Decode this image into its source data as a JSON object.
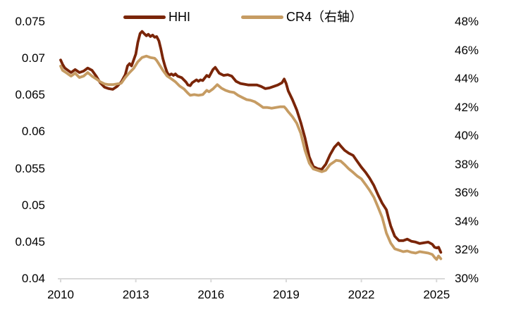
{
  "colors": {
    "hhi": "#7A2508",
    "cr4": "#C69C63",
    "axis_line": "#D9D9D9",
    "text": "#000000",
    "background": "#FFFFFF"
  },
  "legend": {
    "hhi_label": "HHI",
    "cr4_label": "CR4（右轴）"
  },
  "chart_data": {
    "type": "line",
    "title": "",
    "xlabel": "",
    "ylabel_left": "",
    "ylabel_right": "",
    "grid": false,
    "legend_position": "top",
    "x_axis": {
      "ticks": [
        2010,
        2013,
        2016,
        2019,
        2022,
        2025
      ],
      "tick_labels": [
        "2010",
        "2013",
        "2016",
        "2019",
        "2022",
        "2025"
      ],
      "range": [
        2009.9,
        2025.4
      ]
    },
    "y_axis_left": {
      "range": [
        0.04,
        0.075
      ],
      "ticks": [
        0.04,
        0.045,
        0.05,
        0.055,
        0.06,
        0.065,
        0.07,
        0.075
      ],
      "tick_labels": [
        "0.04",
        "0.045",
        "0.05",
        "0.055",
        "0.06",
        "0.065",
        "0.07",
        "0.075"
      ]
    },
    "y_axis_right": {
      "range": [
        30,
        48
      ],
      "ticks": [
        30,
        32,
        34,
        36,
        38,
        40,
        42,
        44,
        46,
        48
      ],
      "tick_labels": [
        "30%",
        "32%",
        "34%",
        "36%",
        "38%",
        "40%",
        "42%",
        "44%",
        "46%",
        "48%"
      ]
    },
    "series": [
      {
        "name": "HHI",
        "axis": "left",
        "color": "#7A2508",
        "points": [
          [
            2010.0,
            0.0698
          ],
          [
            2010.08,
            0.0692
          ],
          [
            2010.17,
            0.0687
          ],
          [
            2010.33,
            0.0683
          ],
          [
            2010.42,
            0.0681
          ],
          [
            2010.58,
            0.0685
          ],
          [
            2010.75,
            0.0681
          ],
          [
            2010.92,
            0.0683
          ],
          [
            2011.08,
            0.0687
          ],
          [
            2011.25,
            0.0684
          ],
          [
            2011.42,
            0.0676
          ],
          [
            2011.58,
            0.0667
          ],
          [
            2011.75,
            0.0661
          ],
          [
            2011.92,
            0.0659
          ],
          [
            2012.08,
            0.0658
          ],
          [
            2012.25,
            0.0662
          ],
          [
            2012.42,
            0.0668
          ],
          [
            2012.58,
            0.0678
          ],
          [
            2012.67,
            0.069
          ],
          [
            2012.75,
            0.0693
          ],
          [
            2012.83,
            0.069
          ],
          [
            2013.0,
            0.0706
          ],
          [
            2013.08,
            0.0722
          ],
          [
            2013.17,
            0.0734
          ],
          [
            2013.25,
            0.0737
          ],
          [
            2013.33,
            0.0734
          ],
          [
            2013.42,
            0.0731
          ],
          [
            2013.5,
            0.0733
          ],
          [
            2013.58,
            0.073
          ],
          [
            2013.67,
            0.0732
          ],
          [
            2013.75,
            0.0729
          ],
          [
            2013.83,
            0.073
          ],
          [
            2013.92,
            0.0724
          ],
          [
            2014.0,
            0.0713
          ],
          [
            2014.08,
            0.07
          ],
          [
            2014.17,
            0.0689
          ],
          [
            2014.25,
            0.0681
          ],
          [
            2014.33,
            0.0677
          ],
          [
            2014.42,
            0.0679
          ],
          [
            2014.5,
            0.0677
          ],
          [
            2014.58,
            0.0679
          ],
          [
            2014.67,
            0.0676
          ],
          [
            2014.83,
            0.0674
          ],
          [
            2015.0,
            0.0668
          ],
          [
            2015.08,
            0.0664
          ],
          [
            2015.17,
            0.0663
          ],
          [
            2015.25,
            0.0667
          ],
          [
            2015.42,
            0.0671
          ],
          [
            2015.5,
            0.0669
          ],
          [
            2015.58,
            0.0671
          ],
          [
            2015.67,
            0.067
          ],
          [
            2015.83,
            0.0677
          ],
          [
            2015.92,
            0.0675
          ],
          [
            2016.08,
            0.0685
          ],
          [
            2016.17,
            0.0688
          ],
          [
            2016.33,
            0.068
          ],
          [
            2016.5,
            0.0677
          ],
          [
            2016.67,
            0.0678
          ],
          [
            2016.83,
            0.0676
          ],
          [
            2017.0,
            0.0669
          ],
          [
            2017.17,
            0.0666
          ],
          [
            2017.33,
            0.0665
          ],
          [
            2017.5,
            0.0664
          ],
          [
            2017.67,
            0.0664
          ],
          [
            2017.83,
            0.0664
          ],
          [
            2018.0,
            0.0662
          ],
          [
            2018.17,
            0.0659
          ],
          [
            2018.33,
            0.066
          ],
          [
            2018.5,
            0.0662
          ],
          [
            2018.67,
            0.0664
          ],
          [
            2018.83,
            0.0667
          ],
          [
            2018.92,
            0.0672
          ],
          [
            2019.0,
            0.0666
          ],
          [
            2019.08,
            0.0656
          ],
          [
            2019.25,
            0.0644
          ],
          [
            2019.42,
            0.063
          ],
          [
            2019.58,
            0.0613
          ],
          [
            2019.75,
            0.0592
          ],
          [
            2019.92,
            0.0566
          ],
          [
            2020.08,
            0.0553
          ],
          [
            2020.25,
            0.055
          ],
          [
            2020.42,
            0.0549
          ],
          [
            2020.58,
            0.0556
          ],
          [
            2020.75,
            0.0569
          ],
          [
            2020.92,
            0.0579
          ],
          [
            2021.08,
            0.0585
          ],
          [
            2021.17,
            0.0581
          ],
          [
            2021.33,
            0.0575
          ],
          [
            2021.5,
            0.0571
          ],
          [
            2021.67,
            0.0568
          ],
          [
            2021.83,
            0.056
          ],
          [
            2022.0,
            0.0552
          ],
          [
            2022.17,
            0.0545
          ],
          [
            2022.33,
            0.0537
          ],
          [
            2022.5,
            0.0527
          ],
          [
            2022.67,
            0.0514
          ],
          [
            2022.83,
            0.0503
          ],
          [
            2023.0,
            0.0494
          ],
          [
            2023.08,
            0.0483
          ],
          [
            2023.17,
            0.0472
          ],
          [
            2023.33,
            0.0458
          ],
          [
            2023.5,
            0.0452
          ],
          [
            2023.67,
            0.0452
          ],
          [
            2023.83,
            0.0454
          ],
          [
            2024.0,
            0.0451
          ],
          [
            2024.17,
            0.045
          ],
          [
            2024.33,
            0.0448
          ],
          [
            2024.5,
            0.0449
          ],
          [
            2024.67,
            0.045
          ],
          [
            2024.83,
            0.0447
          ],
          [
            2024.92,
            0.0443
          ],
          [
            2025.0,
            0.0442
          ],
          [
            2025.08,
            0.0443
          ],
          [
            2025.17,
            0.0436
          ]
        ]
      },
      {
        "name": "CR4（右轴）",
        "axis": "right",
        "color": "#C69C63",
        "points": [
          [
            2010.0,
            44.9
          ],
          [
            2010.08,
            44.6
          ],
          [
            2010.17,
            44.5
          ],
          [
            2010.33,
            44.3
          ],
          [
            2010.42,
            44.2
          ],
          [
            2010.58,
            44.4
          ],
          [
            2010.75,
            44.1
          ],
          [
            2010.92,
            44.2
          ],
          [
            2011.08,
            44.45
          ],
          [
            2011.25,
            44.2
          ],
          [
            2011.42,
            44.0
          ],
          [
            2011.58,
            43.8
          ],
          [
            2011.75,
            43.65
          ],
          [
            2011.92,
            43.6
          ],
          [
            2012.08,
            43.6
          ],
          [
            2012.25,
            43.65
          ],
          [
            2012.42,
            43.7
          ],
          [
            2012.58,
            44.1
          ],
          [
            2012.75,
            44.45
          ],
          [
            2012.92,
            44.75
          ],
          [
            2013.08,
            45.2
          ],
          [
            2013.25,
            45.5
          ],
          [
            2013.42,
            45.6
          ],
          [
            2013.58,
            45.5
          ],
          [
            2013.75,
            45.45
          ],
          [
            2013.83,
            45.3
          ],
          [
            2013.92,
            45.05
          ],
          [
            2014.08,
            44.6
          ],
          [
            2014.25,
            44.2
          ],
          [
            2014.42,
            44.0
          ],
          [
            2014.58,
            43.8
          ],
          [
            2014.75,
            43.5
          ],
          [
            2014.92,
            43.3
          ],
          [
            2015.08,
            43.0
          ],
          [
            2015.17,
            42.85
          ],
          [
            2015.33,
            42.9
          ],
          [
            2015.5,
            42.85
          ],
          [
            2015.67,
            42.9
          ],
          [
            2015.83,
            43.2
          ],
          [
            2015.92,
            43.1
          ],
          [
            2016.08,
            43.3
          ],
          [
            2016.25,
            43.6
          ],
          [
            2016.42,
            43.35
          ],
          [
            2016.58,
            43.2
          ],
          [
            2016.75,
            43.1
          ],
          [
            2016.92,
            43.05
          ],
          [
            2017.08,
            42.85
          ],
          [
            2017.25,
            42.7
          ],
          [
            2017.42,
            42.55
          ],
          [
            2017.58,
            42.5
          ],
          [
            2017.75,
            42.4
          ],
          [
            2017.92,
            42.2
          ],
          [
            2018.08,
            42.0
          ],
          [
            2018.25,
            42.0
          ],
          [
            2018.42,
            41.95
          ],
          [
            2018.58,
            42.0
          ],
          [
            2018.75,
            42.05
          ],
          [
            2018.92,
            42.05
          ],
          [
            2019.0,
            41.9
          ],
          [
            2019.08,
            41.7
          ],
          [
            2019.25,
            41.35
          ],
          [
            2019.42,
            40.9
          ],
          [
            2019.58,
            40.2
          ],
          [
            2019.75,
            39.0
          ],
          [
            2019.92,
            38.1
          ],
          [
            2020.08,
            37.7
          ],
          [
            2020.25,
            37.6
          ],
          [
            2020.42,
            37.5
          ],
          [
            2020.58,
            37.6
          ],
          [
            2020.75,
            38.0
          ],
          [
            2020.92,
            38.2
          ],
          [
            2021.0,
            38.3
          ],
          [
            2021.17,
            38.25
          ],
          [
            2021.33,
            38.0
          ],
          [
            2021.5,
            37.7
          ],
          [
            2021.67,
            37.45
          ],
          [
            2021.83,
            37.2
          ],
          [
            2022.0,
            37.0
          ],
          [
            2022.17,
            36.6
          ],
          [
            2022.33,
            36.2
          ],
          [
            2022.5,
            35.7
          ],
          [
            2022.67,
            35.0
          ],
          [
            2022.83,
            34.3
          ],
          [
            2023.0,
            33.2
          ],
          [
            2023.17,
            32.5
          ],
          [
            2023.33,
            32.1
          ],
          [
            2023.5,
            32.0
          ],
          [
            2023.67,
            31.9
          ],
          [
            2023.83,
            31.95
          ],
          [
            2024.0,
            31.85
          ],
          [
            2024.17,
            31.8
          ],
          [
            2024.33,
            31.9
          ],
          [
            2024.5,
            31.85
          ],
          [
            2024.67,
            31.8
          ],
          [
            2024.83,
            31.7
          ],
          [
            2024.92,
            31.5
          ],
          [
            2025.0,
            31.35
          ],
          [
            2025.08,
            31.6
          ],
          [
            2025.17,
            31.4
          ]
        ]
      }
    ]
  }
}
